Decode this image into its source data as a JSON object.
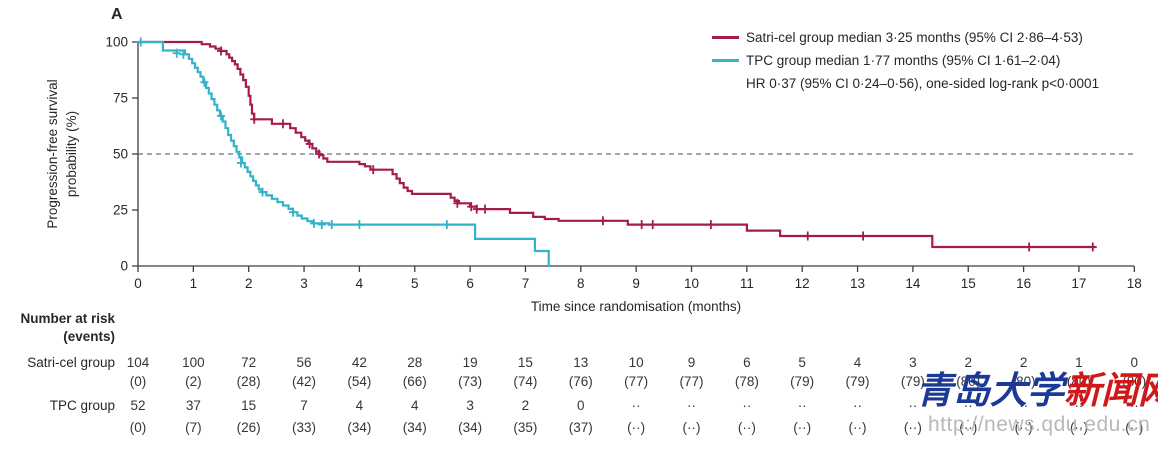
{
  "panel_label": "A",
  "colors": {
    "satri": "#a31b50",
    "tpc": "#33b2c8",
    "median_line": "#55788e",
    "axis": "#3c3c46",
    "text": "#26262e",
    "watermark_blue": "#1b3a96",
    "watermark_red": "#d01818",
    "watermark_url": "#b2b2b2"
  },
  "y_axis": {
    "label_line1": "Progression-free survival",
    "label_line2": "probability (%)",
    "ticks": [
      0,
      25,
      50,
      75,
      100
    ]
  },
  "x_axis": {
    "label": "Time since randomisation (months)",
    "ticks": [
      0,
      1,
      2,
      3,
      4,
      5,
      6,
      7,
      8,
      9,
      10,
      11,
      12,
      13,
      14,
      15,
      16,
      17,
      18
    ]
  },
  "legend": {
    "items": [
      {
        "label": "Satri-cel group median 3·25 months (95% CI 2·86–4·53)",
        "color": "#a31b50"
      },
      {
        "label": "TPC group median 1·77 months (95% CI 1·61–2·04)",
        "color": "#33b2c8"
      }
    ],
    "stats_line": "HR 0·37 (95% CI 0·24–0·56), one-sided log-rank p<0·0001"
  },
  "chart_data": {
    "type": "line",
    "subtype": "kaplan-meier-step",
    "xlabel": "Time since randomisation (months)",
    "ylabel": "Progression-free survival probability (%)",
    "xlim": [
      0,
      18
    ],
    "ylim": [
      0,
      100
    ],
    "median_reference_line_y": 50,
    "legend_position": "top-right",
    "grid": false,
    "series": [
      {
        "name": "Satri-cel group",
        "color": "#a31b50",
        "median_months": 3.25,
        "points": [
          [
            0,
            100
          ],
          [
            1.1,
            100
          ],
          [
            1.15,
            99
          ],
          [
            1.3,
            98
          ],
          [
            1.4,
            97
          ],
          [
            1.5,
            96
          ],
          [
            1.6,
            94.5
          ],
          [
            1.65,
            93
          ],
          [
            1.7,
            91.5
          ],
          [
            1.75,
            90
          ],
          [
            1.8,
            88
          ],
          [
            1.85,
            85.5
          ],
          [
            1.9,
            83
          ],
          [
            1.95,
            80
          ],
          [
            2.0,
            76
          ],
          [
            2.03,
            72
          ],
          [
            2.06,
            68
          ],
          [
            2.1,
            65.5
          ],
          [
            2.42,
            63.5
          ],
          [
            2.75,
            61.5
          ],
          [
            2.85,
            59.5
          ],
          [
            2.95,
            57.5
          ],
          [
            3.02,
            56
          ],
          [
            3.08,
            54.5
          ],
          [
            3.15,
            52.5
          ],
          [
            3.22,
            51
          ],
          [
            3.28,
            49.5
          ],
          [
            3.35,
            48
          ],
          [
            3.42,
            46.5
          ],
          [
            4.0,
            45.5
          ],
          [
            4.1,
            44.5
          ],
          [
            4.2,
            43
          ],
          [
            4.6,
            41
          ],
          [
            4.67,
            39
          ],
          [
            4.73,
            37
          ],
          [
            4.8,
            35
          ],
          [
            4.87,
            33.5
          ],
          [
            4.95,
            32.2
          ],
          [
            5.65,
            30.5
          ],
          [
            5.72,
            29
          ],
          [
            5.8,
            28
          ],
          [
            6.0,
            26.5
          ],
          [
            6.12,
            25.4
          ],
          [
            6.72,
            23.7
          ],
          [
            7.14,
            21.9
          ],
          [
            7.35,
            21
          ],
          [
            7.6,
            20.2
          ],
          [
            8.85,
            18.5
          ],
          [
            11.0,
            15.8
          ],
          [
            11.6,
            13.4
          ],
          [
            14.35,
            8.5
          ],
          [
            17.3,
            8.5
          ]
        ],
        "censors": [
          [
            1.5,
            96
          ],
          [
            2.1,
            65.5
          ],
          [
            2.62,
            63.5
          ],
          [
            3.1,
            54.5
          ],
          [
            3.27,
            50
          ],
          [
            4.25,
            43
          ],
          [
            5.77,
            28
          ],
          [
            6.02,
            26.5
          ],
          [
            6.12,
            25.4
          ],
          [
            6.27,
            25.4
          ],
          [
            8.4,
            20.2
          ],
          [
            9.1,
            18.5
          ],
          [
            9.3,
            18.5
          ],
          [
            10.35,
            18.5
          ],
          [
            12.1,
            13.4
          ],
          [
            13.1,
            13.4
          ],
          [
            16.1,
            8.5
          ],
          [
            17.25,
            8.5
          ]
        ]
      },
      {
        "name": "TPC group",
        "color": "#33b2c8",
        "median_months": 1.77,
        "points": [
          [
            0,
            100
          ],
          [
            0.45,
            96.2
          ],
          [
            0.85,
            94.5
          ],
          [
            0.92,
            92.5
          ],
          [
            0.98,
            90.5
          ],
          [
            1.03,
            88.5
          ],
          [
            1.08,
            86.5
          ],
          [
            1.13,
            84.5
          ],
          [
            1.18,
            82
          ],
          [
            1.23,
            79.5
          ],
          [
            1.28,
            77
          ],
          [
            1.33,
            74.5
          ],
          [
            1.38,
            72
          ],
          [
            1.43,
            69.5
          ],
          [
            1.48,
            67
          ],
          [
            1.53,
            64.5
          ],
          [
            1.58,
            61.5
          ],
          [
            1.63,
            58.5
          ],
          [
            1.68,
            56
          ],
          [
            1.73,
            53.5
          ],
          [
            1.78,
            51
          ],
          [
            1.83,
            48.5
          ],
          [
            1.88,
            46
          ],
          [
            1.93,
            44
          ],
          [
            1.98,
            42
          ],
          [
            2.03,
            40
          ],
          [
            2.08,
            38
          ],
          [
            2.13,
            36
          ],
          [
            2.18,
            34.2
          ],
          [
            2.23,
            33
          ],
          [
            2.32,
            31.5
          ],
          [
            2.42,
            30
          ],
          [
            2.52,
            28.5
          ],
          [
            2.62,
            27
          ],
          [
            2.72,
            25.5
          ],
          [
            2.8,
            24
          ],
          [
            2.88,
            22.5
          ],
          [
            2.96,
            21.2
          ],
          [
            3.06,
            20
          ],
          [
            3.16,
            19
          ],
          [
            3.45,
            18.5
          ],
          [
            6.09,
            12.1
          ],
          [
            7.17,
            6.7
          ],
          [
            7.42,
            0
          ],
          [
            7.46,
            0
          ]
        ],
        "censors": [
          [
            0.05,
            100
          ],
          [
            0.7,
            95
          ],
          [
            0.82,
            94.5
          ],
          [
            1.2,
            82
          ],
          [
            1.5,
            67
          ],
          [
            1.86,
            46
          ],
          [
            2.25,
            33
          ],
          [
            2.8,
            24
          ],
          [
            3.18,
            19
          ],
          [
            3.32,
            18.5
          ],
          [
            3.5,
            18.5
          ],
          [
            4.0,
            18.5
          ],
          [
            5.58,
            18.5
          ]
        ]
      }
    ]
  },
  "risk_table": {
    "title_line1": "Number at risk",
    "title_line2": "(events)",
    "rows": [
      {
        "label": "Satri-cel group",
        "counts": [
          "104",
          "100",
          "72",
          "56",
          "42",
          "28",
          "19",
          "15",
          "13",
          "10",
          "9",
          "6",
          "5",
          "4",
          "3",
          "2",
          "2",
          "1",
          "0"
        ],
        "events": [
          "(0)",
          "(2)",
          "(28)",
          "(42)",
          "(54)",
          "(66)",
          "(73)",
          "(74)",
          "(76)",
          "(77)",
          "(77)",
          "(78)",
          "(79)",
          "(79)",
          "(79)",
          "(80)",
          "(80)",
          "(80)",
          "(80)"
        ]
      },
      {
        "label": "TPC group",
        "counts": [
          "52",
          "37",
          "15",
          "7",
          "4",
          "4",
          "3",
          "2",
          "0",
          "··",
          "··",
          "··",
          "··",
          "··",
          "··",
          "··",
          "··",
          "··",
          "··"
        ],
        "events": [
          "(0)",
          "(7)",
          "(26)",
          "(33)",
          "(34)",
          "(34)",
          "(34)",
          "(35)",
          "(37)",
          "(··)",
          "(··)",
          "(··)",
          "(··)",
          "(··)",
          "(··)",
          "(··)",
          "(··)",
          "(··)",
          "(··)"
        ]
      }
    ]
  },
  "watermark": {
    "cn_blue": "青岛大学",
    "cn_red": "新闻网",
    "url": "http://news.qdu.edu.cn"
  }
}
